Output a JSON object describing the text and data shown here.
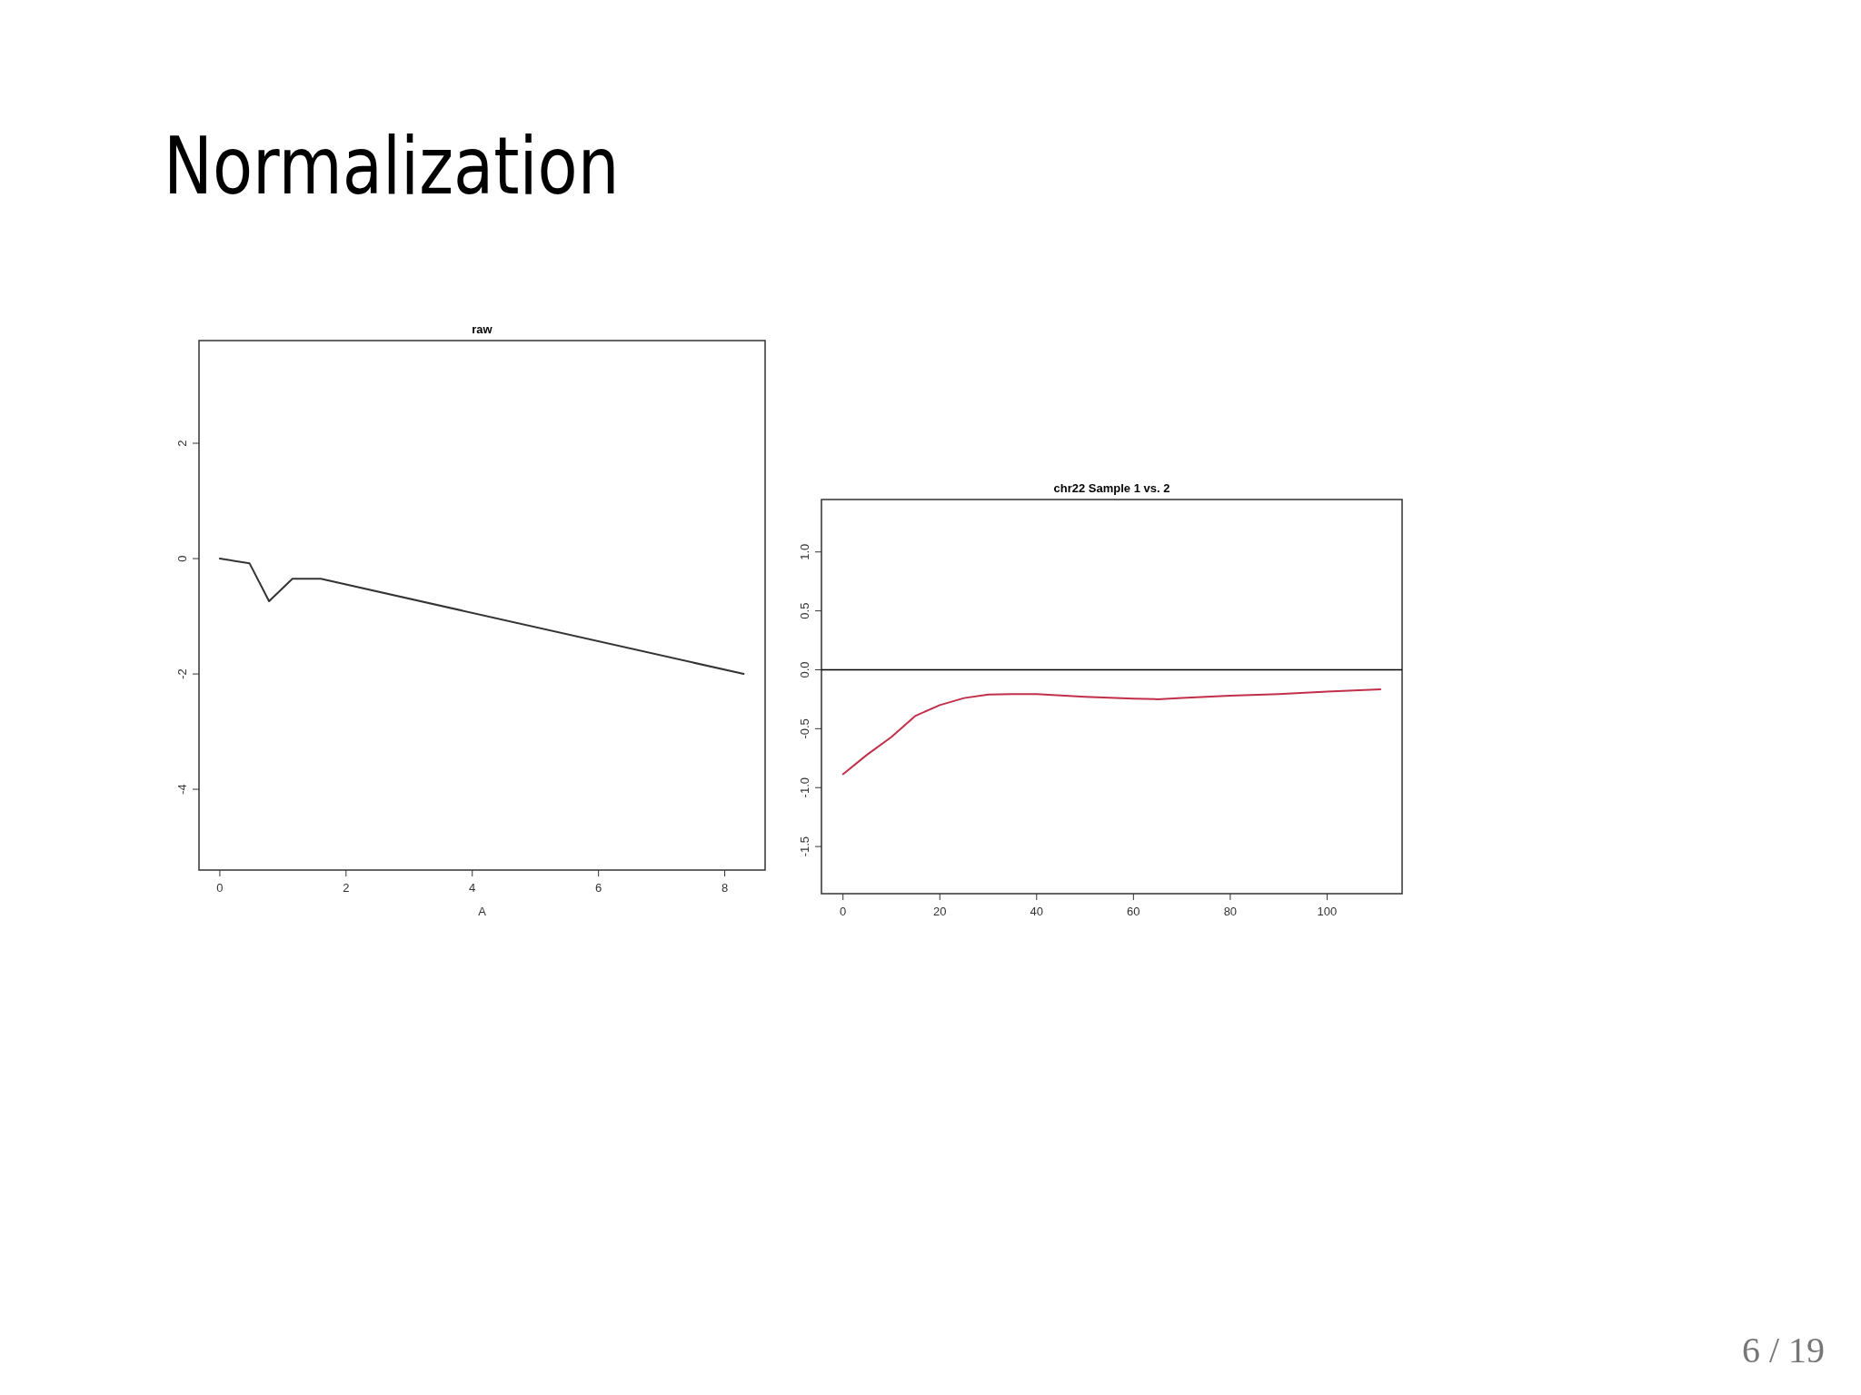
{
  "chart_data": [
    {
      "type": "line",
      "title": "raw",
      "xlabel": "A",
      "annotations": [
        "Normalization"
      ],
      "xlim": [
        -0.33,
        8.64
      ],
      "ylim": [
        -5.4,
        3.78
      ],
      "xticks": [
        0,
        2,
        4,
        6,
        8
      ],
      "yticks": [
        2,
        0,
        -2,
        -4
      ],
      "series": [
        {
          "color": "#333333",
          "x": [
            0,
            0.47,
            0.78,
            1.15,
            1.6,
            8.3
          ],
          "values": [
            0,
            -0.08,
            -0.74,
            -0.35,
            -0.35,
            -2.0
          ]
        }
      ]
    },
    {
      "type": "line",
      "title": "chr22 Sample 1 vs. 2",
      "annotations": [
        "6 / 19"
      ],
      "xlim": [
        -4.45,
        115.5
      ],
      "ylim": [
        -1.9,
        1.445
      ],
      "xticks": [
        0,
        20,
        40,
        60,
        80,
        100
      ],
      "yticks": [
        {
          "value": 1,
          "label": "1.0"
        },
        0.5,
        {
          "value": 0,
          "label": "0.0"
        },
        -0.5,
        {
          "value": -1,
          "label": "-1.0"
        },
        -1.5
      ],
      "ref_lines": [
        {
          "axis": "y",
          "value": 0,
          "color": "#000000"
        }
      ],
      "series": [
        {
          "color": "#c0304a",
          "x": [
            0,
            5,
            10,
            15,
            20,
            25,
            30,
            35,
            40,
            50,
            60,
            65,
            70,
            80,
            90,
            100,
            111
          ],
          "values": [
            -0.886,
            -0.72,
            -0.57,
            -0.39,
            -0.3,
            -0.24,
            -0.21,
            -0.207,
            -0.207,
            -0.23,
            -0.245,
            -0.25,
            -0.24,
            -0.22,
            -0.207,
            -0.186,
            -0.166
          ]
        }
      ]
    }
  ]
}
